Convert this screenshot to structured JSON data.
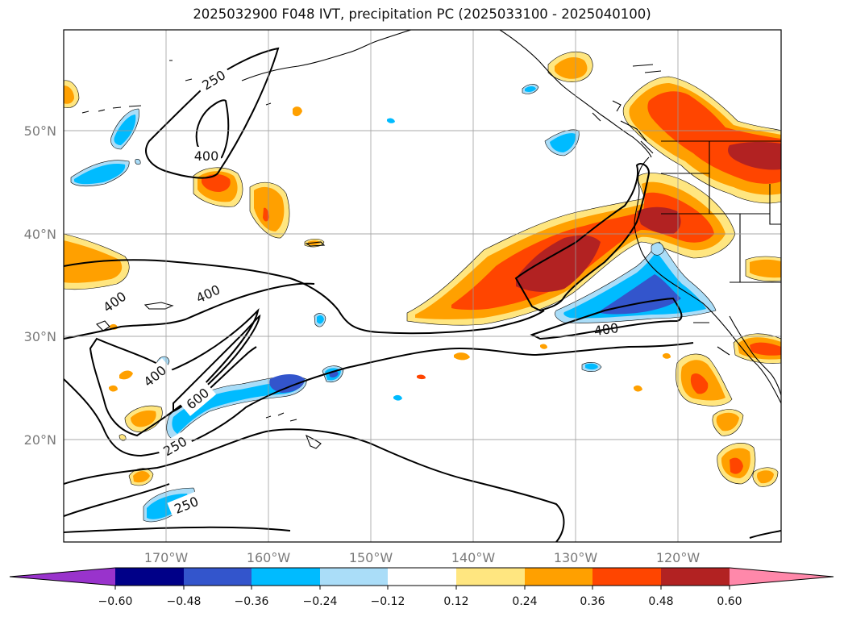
{
  "title": "2025032900 F048 IVT, precipitation PC (2025033100 - 2025040100)",
  "map": {
    "lon_ticks": [
      "170°W",
      "160°W",
      "150°W",
      "140°W",
      "130°W",
      "120°W"
    ],
    "lat_ticks": [
      "50°N",
      "40°N",
      "30°N",
      "20°N"
    ],
    "grid": true
  },
  "ivt_contours": {
    "levels": [
      250,
      400,
      600
    ],
    "labels": [
      "250",
      "400",
      "400",
      "400",
      "400",
      "600",
      "250",
      "250",
      "400"
    ]
  },
  "colorbar": {
    "ticks": [
      "−0.60",
      "−0.48",
      "−0.36",
      "−0.24",
      "−0.12",
      "0.12",
      "0.24",
      "0.36",
      "0.48",
      "0.60"
    ],
    "colors": [
      "#9933cc",
      "#000088",
      "#3355cc",
      "#00bbff",
      "#aaddf8",
      "#ffffff",
      "#ffe680",
      "#ffa000",
      "#ff4500",
      "#b22222",
      "#ff88aa"
    ],
    "extend": "both"
  },
  "shading_colors": {
    "pos1": "#ffe680",
    "pos2": "#ffa000",
    "pos3": "#ff4500",
    "pos4": "#b22222",
    "neg1": "#aaddf8",
    "neg2": "#00bbff",
    "neg3": "#3355cc"
  }
}
